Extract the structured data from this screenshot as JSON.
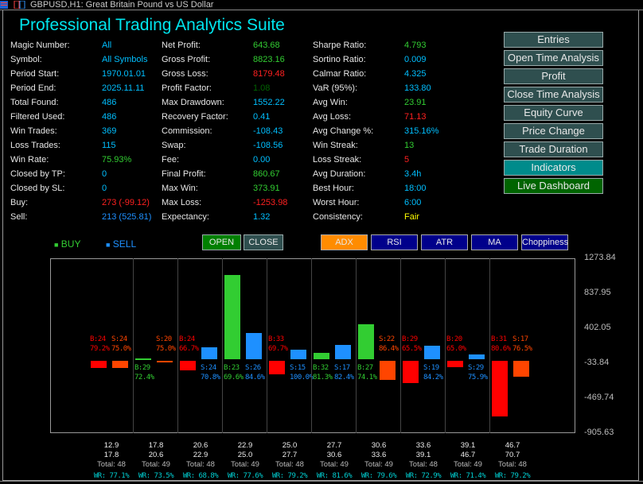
{
  "window": {
    "title": "GBPUSD,H1: Great Britain Pound vs US Dollar"
  },
  "app_title": "Professional Trading Analytics Suite",
  "colors": {
    "accent": "#00e5ee",
    "green": "#32cd32",
    "red": "#ff0000",
    "orange": "#ff4500",
    "blue": "#1e90ff",
    "nav_button": "#2f4f4f",
    "active_button": "#008b8b",
    "live_button": "#006400",
    "indicator_button": "#00008b",
    "adx_active": "#ff8c00"
  },
  "stats": {
    "col1": [
      {
        "label": "Magic Number:",
        "value": "All",
        "color": "#00bfff"
      },
      {
        "label": "Symbol:",
        "value": "All Symbols",
        "color": "#00bfff"
      },
      {
        "label": "Period Start:",
        "value": "1970.01.01",
        "color": "#00bfff"
      },
      {
        "label": "Period End:",
        "value": "2025.11.11",
        "color": "#00bfff"
      },
      {
        "label": "Total Found:",
        "value": "486",
        "color": "#00bfff"
      },
      {
        "label": "Filtered Used:",
        "value": "486",
        "color": "#00bfff"
      },
      {
        "label": "Win Trades:",
        "value": "369",
        "color": "#00bfff"
      },
      {
        "label": "Loss Trades:",
        "value": "115",
        "color": "#00bfff"
      },
      {
        "label": "Win Rate:",
        "value": "75.93%",
        "color": "#32cd32"
      },
      {
        "label": "Closed by TP:",
        "value": "0",
        "color": "#00bfff"
      },
      {
        "label": "Closed by SL:",
        "value": "0",
        "color": "#00bfff"
      },
      {
        "label": "Buy:",
        "value": "273 (-99.12)",
        "color": "#ff2020"
      },
      {
        "label": "Sell:",
        "value": "213 (525.81)",
        "color": "#1e90ff"
      }
    ],
    "col2": [
      {
        "label": "Net Profit:",
        "value": "643.68",
        "color": "#32cd32"
      },
      {
        "label": "Gross Profit:",
        "value": "8823.16",
        "color": "#32cd32"
      },
      {
        "label": "Gross Loss:",
        "value": "8179.48",
        "color": "#ff2020"
      },
      {
        "label": "Profit Factor:",
        "value": "1.08",
        "color": "#006400"
      },
      {
        "label": "Max Drawdown:",
        "value": "1552.22",
        "color": "#00bfff"
      },
      {
        "label": "Recovery Factor:",
        "value": "0.41",
        "color": "#00bfff"
      },
      {
        "label": "Commission:",
        "value": "-108.43",
        "color": "#00bfff"
      },
      {
        "label": "Swap:",
        "value": "-108.56",
        "color": "#00bfff"
      },
      {
        "label": "Fee:",
        "value": "0.00",
        "color": "#00bfff"
      },
      {
        "label": "Final Profit:",
        "value": "860.67",
        "color": "#32cd32"
      },
      {
        "label": "Max Win:",
        "value": "373.91",
        "color": "#32cd32"
      },
      {
        "label": "Max Loss:",
        "value": "-1253.98",
        "color": "#ff2020"
      },
      {
        "label": "Expectancy:",
        "value": "1.32",
        "color": "#00bfff"
      }
    ],
    "col3": [
      {
        "label": "Sharpe Ratio:",
        "value": "4.793",
        "color": "#32cd32"
      },
      {
        "label": "Sortino Ratio:",
        "value": "0.009",
        "color": "#00bfff"
      },
      {
        "label": "Calmar Ratio:",
        "value": "4.325",
        "color": "#00bfff"
      },
      {
        "label": "VaR (95%):",
        "value": "133.80",
        "color": "#00bfff"
      },
      {
        "label": "Avg Win:",
        "value": "23.91",
        "color": "#32cd32"
      },
      {
        "label": "Avg Loss:",
        "value": "71.13",
        "color": "#ff2020"
      },
      {
        "label": "Avg Change %:",
        "value": "315.16%",
        "color": "#00bfff"
      },
      {
        "label": "Win Streak:",
        "value": "13",
        "color": "#32cd32"
      },
      {
        "label": "Loss Streak:",
        "value": "5",
        "color": "#ff2020"
      },
      {
        "label": "Avg Duration:",
        "value": "3.4h",
        "color": "#00bfff"
      },
      {
        "label": "Best Hour:",
        "value": "18:00",
        "color": "#00bfff"
      },
      {
        "label": "Worst Hour:",
        "value": "6:00",
        "color": "#00bfff"
      },
      {
        "label": "Consistency:",
        "value": "Fair",
        "color": "#ffff00"
      }
    ]
  },
  "nav_buttons": [
    {
      "label": "Entries",
      "state": "normal"
    },
    {
      "label": "Open Time Analysis",
      "state": "normal"
    },
    {
      "label": "Profit",
      "state": "normal"
    },
    {
      "label": "Close Time Analysis",
      "state": "normal"
    },
    {
      "label": "Equity Curve",
      "state": "normal"
    },
    {
      "label": "Price Change",
      "state": "normal"
    },
    {
      "label": "Trade Duration",
      "state": "normal"
    },
    {
      "label": "Indicators",
      "state": "active"
    },
    {
      "label": "Live Dashboard",
      "state": "live"
    }
  ],
  "legend": {
    "buy": "BUY",
    "sell": "SELL",
    "marker": "■"
  },
  "mode_buttons": {
    "open": "OPEN",
    "close": "CLOSE"
  },
  "indicator_buttons": [
    "ADX",
    "RSI",
    "ATR",
    "MA",
    "Choppiness"
  ],
  "chart_data": {
    "type": "bar",
    "indicator": "ADX",
    "ylim": [
      -905.63,
      1273.84
    ],
    "ytick_labels": [
      "1273.84",
      "837.95",
      "402.05",
      "-33.84",
      "-469.74",
      "-905.63"
    ],
    "buckets": [
      {
        "from": "12.9",
        "to": "17.8",
        "total": "Total: 48",
        "wr": "WR: 77.1%",
        "buy": {
          "value": -90,
          "count": "B:24",
          "wr": "79.2%"
        },
        "sell": {
          "value": -90,
          "count": "S:24",
          "wr": "75.0%"
        }
      },
      {
        "from": "17.8",
        "to": "20.6",
        "total": "Total: 49",
        "wr": "WR: 73.5%",
        "buy": {
          "value": 25,
          "count": "B:29",
          "wr": "72.4%"
        },
        "sell": {
          "value": -5,
          "count": "S:20",
          "wr": "75.0%"
        }
      },
      {
        "from": "20.6",
        "to": "22.9",
        "total": "Total: 48",
        "wr": "WR: 68.8%",
        "buy": {
          "value": -120,
          "count": "B:24",
          "wr": "66.7%"
        },
        "sell": {
          "value": 160,
          "count": "S:24",
          "wr": "70.8%"
        }
      },
      {
        "from": "22.9",
        "to": "25.0",
        "total": "Total: 49",
        "wr": "WR: 77.6%",
        "buy": {
          "value": 1070,
          "count": "B:23",
          "wr": "69.6%"
        },
        "sell": {
          "value": 340,
          "count": "S:26",
          "wr": "84.6%"
        }
      },
      {
        "from": "25.0",
        "to": "27.7",
        "total": "Total: 48",
        "wr": "WR: 79.2%",
        "buy": {
          "value": -170,
          "count": "B:33",
          "wr": "69.7%"
        },
        "sell": {
          "value": 130,
          "count": "S:15",
          "wr": "100.0%"
        }
      },
      {
        "from": "27.7",
        "to": "30.6",
        "total": "Total: 49",
        "wr": "WR: 81.6%",
        "buy": {
          "value": 90,
          "count": "B:32",
          "wr": "81.3%"
        },
        "sell": {
          "value": 190,
          "count": "S:17",
          "wr": "82.4%"
        }
      },
      {
        "from": "30.6",
        "to": "33.6",
        "total": "Total: 49",
        "wr": "WR: 79.6%",
        "buy": {
          "value": 450,
          "count": "B:27",
          "wr": "74.1%"
        },
        "sell": {
          "value": -240,
          "count": "S:22",
          "wr": "86.4%"
        }
      },
      {
        "from": "33.6",
        "to": "39.1",
        "total": "Total: 48",
        "wr": "WR: 72.9%",
        "buy": {
          "value": -280,
          "count": "B:29",
          "wr": "65.5%"
        },
        "sell": {
          "value": 180,
          "count": "S:19",
          "wr": "84.2%"
        }
      },
      {
        "from": "39.1",
        "to": "46.7",
        "total": "Total: 49",
        "wr": "WR: 71.4%",
        "buy": {
          "value": -80,
          "count": "B:20",
          "wr": "65.0%"
        },
        "sell": {
          "value": 80,
          "count": "S:29",
          "wr": "75.9%"
        }
      },
      {
        "from": "46.7",
        "to": "70.7",
        "total": "Total: 48",
        "wr": "WR: 79.2%",
        "buy": {
          "value": -700,
          "count": "B:31",
          "wr": "80.6%"
        },
        "sell": {
          "value": -200,
          "count": "S:17",
          "wr": "76.5%"
        }
      }
    ]
  }
}
